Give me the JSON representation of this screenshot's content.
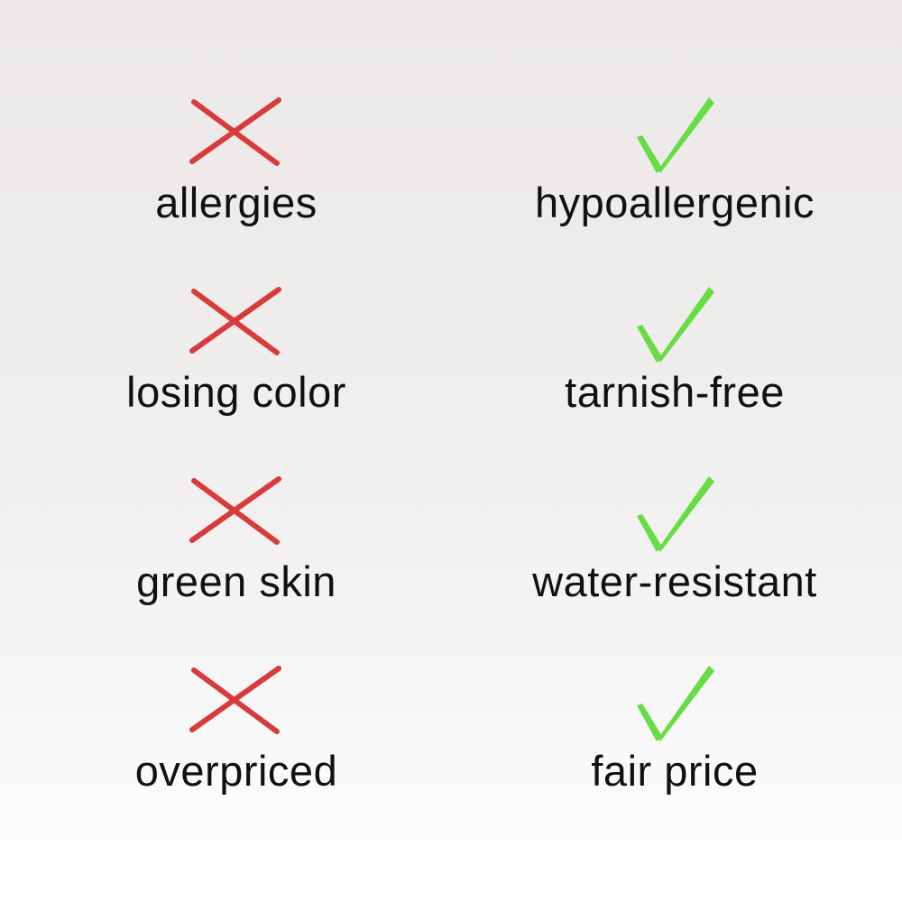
{
  "colors": {
    "cross": "#d93a3a",
    "check": "#66dd44",
    "text": "#111111"
  },
  "rows": [
    {
      "negative": {
        "icon": "cross-icon",
        "label": "allergies"
      },
      "positive": {
        "icon": "check-icon",
        "label": "hypoallergenic"
      }
    },
    {
      "negative": {
        "icon": "cross-icon",
        "label": "losing color"
      },
      "positive": {
        "icon": "check-icon",
        "label": "tarnish-free"
      }
    },
    {
      "negative": {
        "icon": "cross-icon",
        "label": "green skin"
      },
      "positive": {
        "icon": "check-icon",
        "label": "water-resistant"
      }
    },
    {
      "negative": {
        "icon": "cross-icon",
        "label": "overpriced"
      },
      "positive": {
        "icon": "check-icon",
        "label": "fair price"
      }
    }
  ]
}
